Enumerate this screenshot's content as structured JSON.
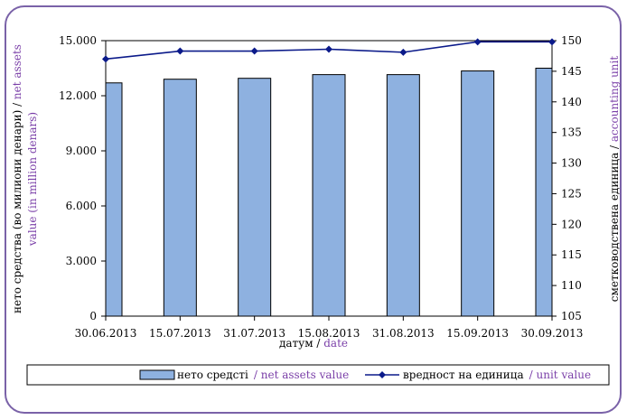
{
  "chart_data": {
    "type": "bar+line",
    "categories": [
      "30.06.2013",
      "15.07.2013",
      "31.07.2013",
      "15.08.2013",
      "31.08.2013",
      "15.09.2013",
      "30.09.2013"
    ],
    "series": [
      {
        "name": "нето средстi",
        "name_en": "/ net assets value",
        "type": "bar",
        "axis": "left",
        "values": [
          12700,
          12900,
          12950,
          13150,
          13150,
          13350,
          13500
        ]
      },
      {
        "name": "вредност на единица",
        "name_en": "/ unit value",
        "type": "line",
        "axis": "right",
        "values": [
          147.0,
          148.3,
          148.3,
          148.6,
          148.1,
          149.8,
          149.8
        ]
      }
    ],
    "y_left": {
      "min": 0,
      "max": 15000,
      "ticks": [
        "0",
        "3.000",
        "6.000",
        "9.000",
        "12.000",
        "15.000"
      ],
      "label_mk": "нето средства (во милиони денари) / ",
      "label_en_1": "net assets",
      "label_en_2": "value  (in million denars)"
    },
    "y_right": {
      "min": 105,
      "max": 150,
      "ticks": [
        "105",
        "110",
        "115",
        "120",
        "125",
        "130",
        "135",
        "140",
        "145",
        "150"
      ],
      "label_mk": "сметководствена единица / ",
      "label_en": "accounting unit"
    },
    "x_axis": {
      "label_mk": "датум / ",
      "label_en": "date"
    },
    "colors": {
      "bar_fill": "#8eb1e0",
      "bar_stroke": "#000000",
      "line": "#0b1a8a",
      "english_text": "#7a3fa8",
      "frame": "#7a62a8"
    },
    "legend_position": "bottom"
  }
}
